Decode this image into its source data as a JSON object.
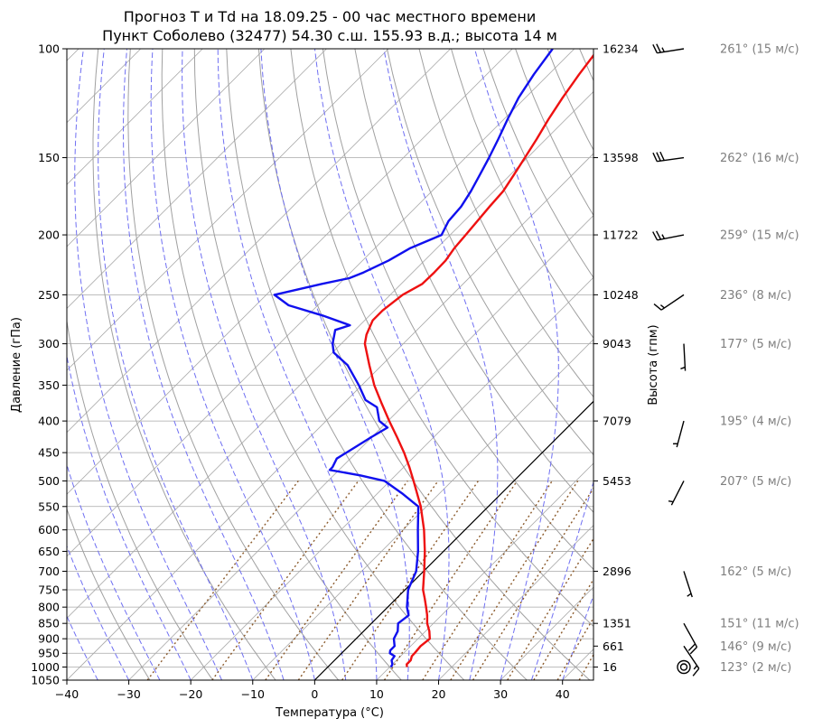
{
  "chart_data": {
    "type": "line",
    "subtype": "skew-T log-p diagram",
    "title": "Прогноз T и Td на 18.09.25 - 00 час местного времени",
    "subtitle": "Пункт Соболево (32477) 54.30 с.ш. 155.93 в.д.; высота 14 м",
    "xlabel": "Температура (°C)",
    "ylabel": "Давление (гПа)",
    "ylabel_right": "Высота (гпм)",
    "xlim": [
      -40,
      45
    ],
    "ylim": [
      1050,
      100
    ],
    "yscale": "log",
    "x_ticks": [
      -40,
      -30,
      -20,
      -10,
      0,
      10,
      20,
      30,
      40
    ],
    "y_ticks": [
      1050,
      1000,
      950,
      900,
      850,
      800,
      750,
      700,
      650,
      600,
      550,
      500,
      450,
      400,
      350,
      300,
      250,
      200,
      150,
      100
    ],
    "height_ticks": [
      {
        "p": 100,
        "label": "16234"
      },
      {
        "p": 150,
        "label": "13598"
      },
      {
        "p": 200,
        "label": "11722"
      },
      {
        "p": 250,
        "label": "10248"
      },
      {
        "p": 300,
        "label": "9043"
      },
      {
        "p": 400,
        "label": "7079"
      },
      {
        "p": 500,
        "label": "5453"
      },
      {
        "p": 700,
        "label": "2896"
      },
      {
        "p": 850,
        "label": "1351"
      },
      {
        "p": 925,
        "label": "661"
      },
      {
        "p": 1000,
        "label": "16"
      }
    ],
    "grid": true,
    "colors": {
      "temperature": "#ee1111",
      "dewpoint": "#1010ee",
      "dry_adiabat": "#a0a0a0",
      "moist_adiabat": "#6f6ff2",
      "mixing_ratio": "#8b5a2b",
      "isotherm_zero": "#000000",
      "grid": "#a8a8a8",
      "wind_label": "#7f7f7f"
    },
    "series": [
      {
        "key": "temperature",
        "p": [
          1000,
          990,
          975,
          960,
          950,
          925,
          900,
          875,
          850,
          825,
          800,
          775,
          750,
          700,
          650,
          600,
          550,
          500,
          475,
          450,
          425,
          400,
          375,
          350,
          325,
          300,
          290,
          275,
          265,
          250,
          240,
          230,
          220,
          210,
          200,
          180,
          170,
          160,
          150,
          140,
          130,
          120,
          110,
          100
        ],
        "t": [
          12.8,
          12.3,
          12.3,
          11.8,
          11.8,
          11.6,
          11.9,
          10.6,
          9.0,
          7.7,
          6.2,
          4.6,
          2.9,
          0.1,
          -3.0,
          -6.6,
          -10.9,
          -16.2,
          -19.1,
          -22.3,
          -25.9,
          -29.8,
          -33.8,
          -38.0,
          -42.0,
          -46.2,
          -47.4,
          -48.7,
          -48.7,
          -48.0,
          -46.6,
          -46.5,
          -46.6,
          -47.2,
          -47.5,
          -48.2,
          -48.5,
          -49.4,
          -50.4,
          -51.5,
          -52.8,
          -54.0,
          -55.1,
          -56.1
        ]
      },
      {
        "key": "dewpoint",
        "p": [
          1000,
          990,
          975,
          960,
          950,
          940,
          925,
          900,
          875,
          850,
          825,
          800,
          750,
          700,
          650,
          600,
          550,
          525,
          500,
          490,
          480,
          475,
          460,
          450,
          425,
          410,
          400,
          380,
          370,
          350,
          325,
          310,
          300,
          285,
          280,
          270,
          260,
          250,
          240,
          235,
          230,
          220,
          210,
          200,
          190,
          180,
          170,
          160,
          150,
          140,
          130,
          120,
          110,
          100
        ],
        "t": [
          10.2,
          10.0,
          9.2,
          9.0,
          7.8,
          7.4,
          7.4,
          6.1,
          5.5,
          4.3,
          4.7,
          3.1,
          0.5,
          -1.2,
          -4.1,
          -7.6,
          -11.3,
          -15.8,
          -20.9,
          -25.6,
          -31.5,
          -31.5,
          -32.2,
          -31.6,
          -30.1,
          -29.0,
          -31.4,
          -34.0,
          -37.0,
          -40.5,
          -45.5,
          -49.8,
          -51.4,
          -53.2,
          -51.6,
          -57.6,
          -64.7,
          -68.7,
          -62.8,
          -59.3,
          -57.9,
          -55.8,
          -54.3,
          -51.4,
          -52.5,
          -52.8,
          -53.7,
          -54.9,
          -56.2,
          -57.7,
          -59.4,
          -61.1,
          -62.4,
          -63.5
        ]
      }
    ],
    "wind_barbs": [
      {
        "p": 100,
        "label": "261° (15 м/с)"
      },
      {
        "p": 150,
        "label": "262° (16 м/с)"
      },
      {
        "p": 200,
        "label": "259° (15 м/с)"
      },
      {
        "p": 250,
        "label": "236° (8 м/с)"
      },
      {
        "p": 300,
        "label": "177° (5 м/с)"
      },
      {
        "p": 400,
        "label": "195° (4 м/с)"
      },
      {
        "p": 500,
        "label": "207° (5 м/с)"
      },
      {
        "p": 700,
        "label": "162° (5 м/с)"
      },
      {
        "p": 850,
        "label": "151° (11 м/с)"
      },
      {
        "p": 925,
        "label": "146° (9 м/с)"
      },
      {
        "p": 1000,
        "label": "123° (2 м/с)"
      }
    ]
  }
}
